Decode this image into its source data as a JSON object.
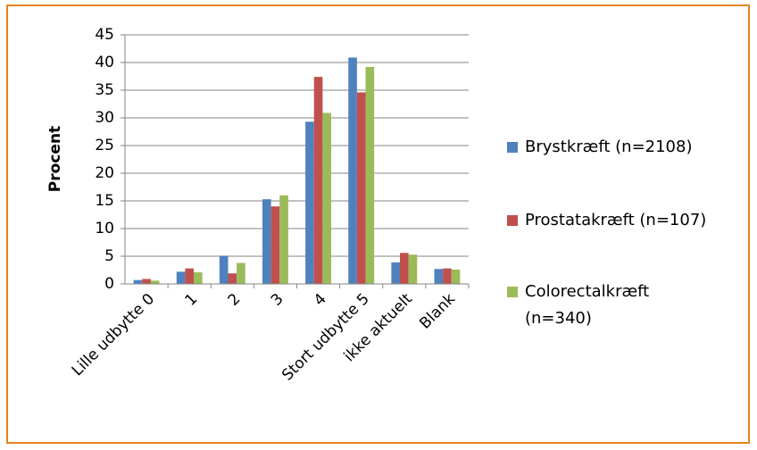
{
  "chart_data": {
    "type": "bar",
    "y_label": "Procent",
    "categories": [
      "Lille udbytte 0",
      "1",
      "2",
      "3",
      "4",
      "Stort udbytte 5",
      "ikke aktuelt",
      "Blank"
    ],
    "series": [
      {
        "name": "Brystkræft (n=2108)",
        "color": "#4f81bd",
        "values": [
          0.7,
          2.2,
          5.1,
          15.3,
          29.3,
          40.9,
          3.9,
          2.7
        ]
      },
      {
        "name": "Prostatakræft (n=107)",
        "color": "#c0504d",
        "values": [
          0.9,
          2.8,
          1.9,
          14.0,
          37.4,
          34.6,
          5.6,
          2.8
        ]
      },
      {
        "name": "Colorectalkræft (n=340)",
        "color": "#9bbb59",
        "values": [
          0.6,
          2.1,
          3.8,
          16.0,
          30.9,
          39.2,
          5.3,
          2.6
        ]
      }
    ],
    "ylim": [
      0,
      45
    ],
    "yticks": [
      0,
      5,
      10,
      15,
      20,
      25,
      30,
      35,
      40,
      45
    ],
    "grid": true,
    "legend": "right"
  }
}
